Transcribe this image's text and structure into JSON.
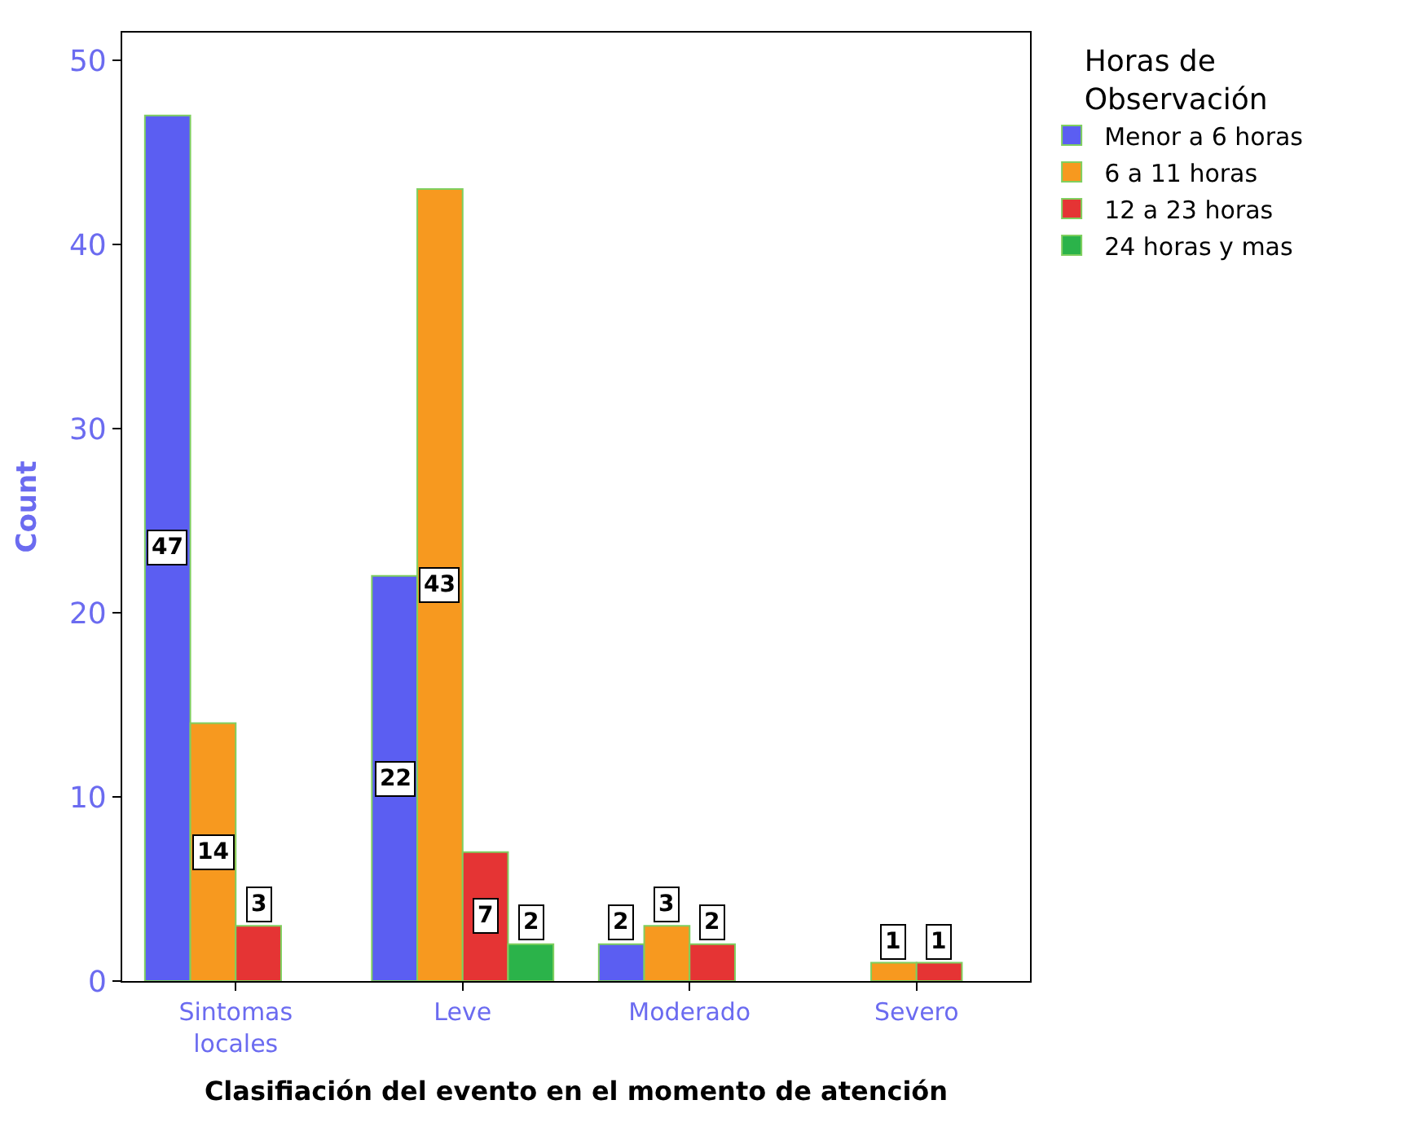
{
  "chart_data": {
    "type": "bar",
    "xlabel": "Clasifiación del evento en el momento de atención",
    "ylabel": "Count",
    "legend_title": "Horas de\nObservación",
    "categories": [
      "Sintomas\nlocales",
      "Leve",
      "Moderado",
      "Severo"
    ],
    "series": [
      {
        "name": "Menor a 6 horas",
        "color": "#5b5ef2",
        "values": [
          47,
          22,
          2,
          null
        ]
      },
      {
        "name": "6 a 11 horas",
        "color": "#f7991f",
        "values": [
          14,
          43,
          3,
          1
        ]
      },
      {
        "name": "12 a 23 horas",
        "color": "#e53434",
        "values": [
          3,
          7,
          2,
          1
        ]
      },
      {
        "name": "24 horas y mas",
        "color": "#2bb34a",
        "values": [
          null,
          2,
          null,
          null
        ]
      }
    ],
    "ylim": [
      0,
      51.5
    ],
    "yticks": [
      0,
      10,
      20,
      30,
      40,
      50
    ],
    "legend": "top right",
    "data_labels": true
  }
}
